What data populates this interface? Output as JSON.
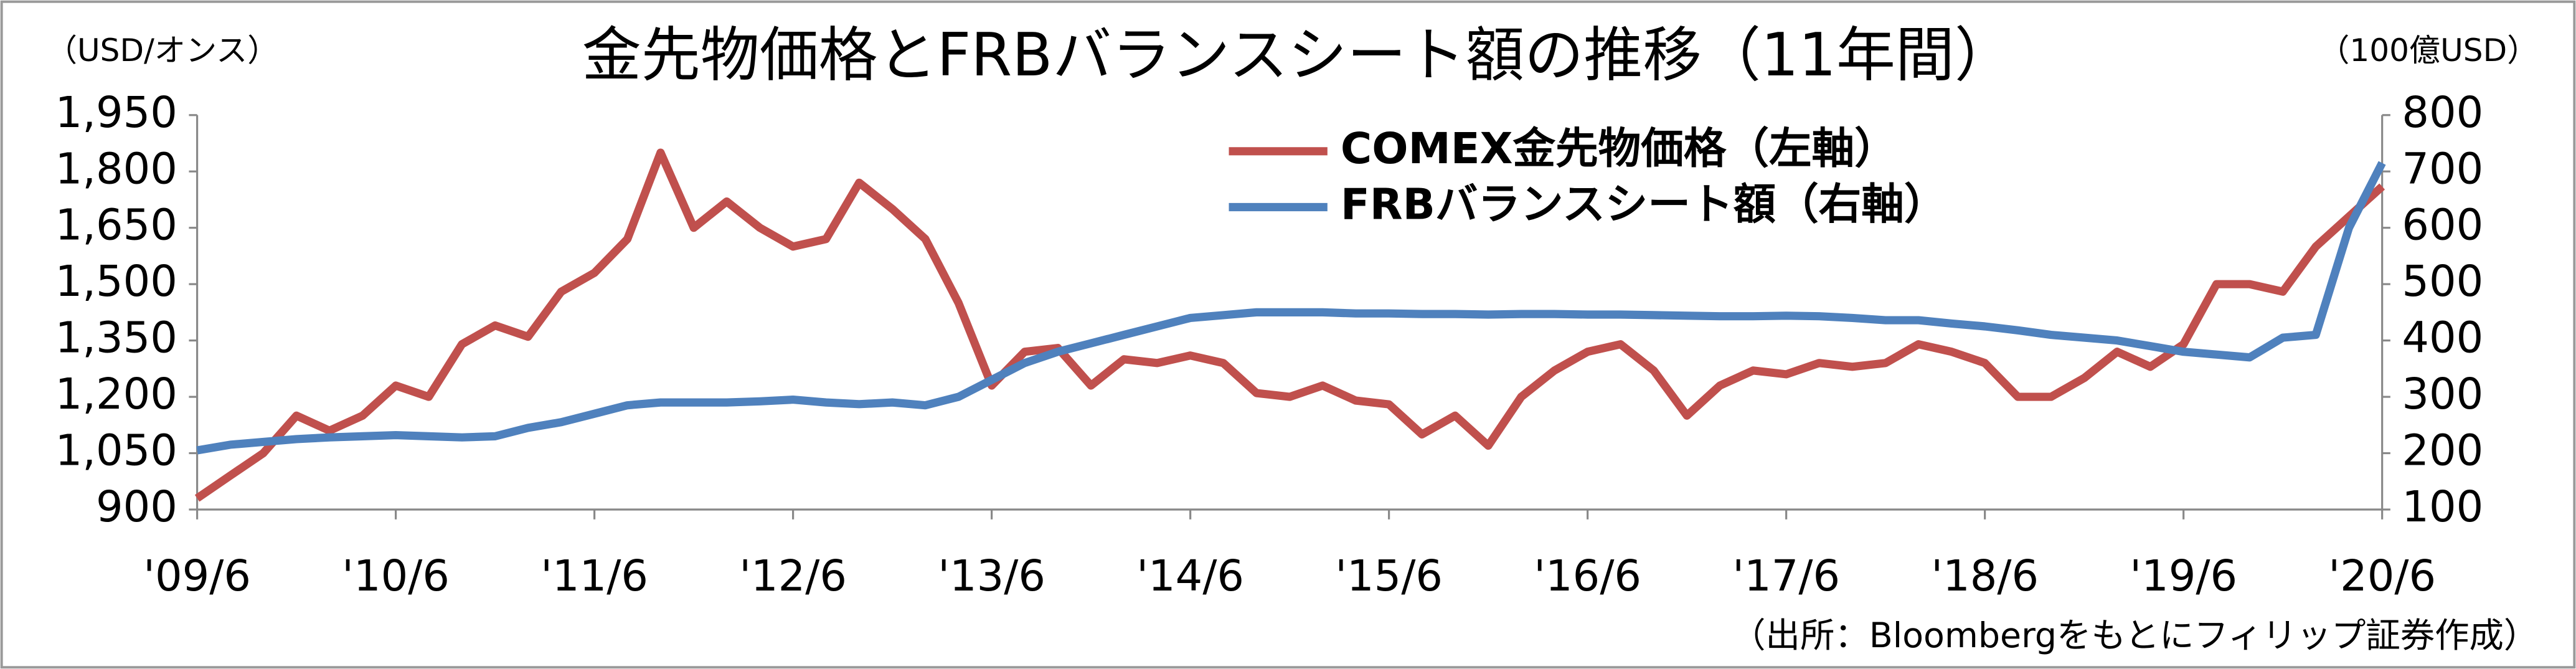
{
  "chart_data": {
    "type": "line",
    "title": "金先物価格とFRBバランスシート額の推移（11年間）",
    "y_label": "（USD/オンス）",
    "y2_label": "（100億USD）",
    "source": "（出所：Bloombergをもとにフィリップ証券作成）",
    "x": [
      2009.417,
      2009.583,
      2009.75,
      2009.917,
      2010.083,
      2010.25,
      2010.417,
      2010.583,
      2010.75,
      2010.917,
      2011.083,
      2011.25,
      2011.417,
      2011.583,
      2011.75,
      2011.917,
      2012.083,
      2012.25,
      2012.417,
      2012.583,
      2012.75,
      2012.917,
      2013.083,
      2013.25,
      2013.417,
      2013.583,
      2013.75,
      2013.917,
      2014.083,
      2014.25,
      2014.417,
      2014.583,
      2014.75,
      2014.917,
      2015.083,
      2015.25,
      2015.417,
      2015.583,
      2015.75,
      2015.917,
      2016.083,
      2016.25,
      2016.417,
      2016.583,
      2016.75,
      2016.917,
      2017.083,
      2017.25,
      2017.417,
      2017.583,
      2017.75,
      2017.917,
      2018.083,
      2018.25,
      2018.417,
      2018.583,
      2018.75,
      2018.917,
      2019.083,
      2019.25,
      2019.417,
      2019.583,
      2019.75,
      2019.917,
      2020.083,
      2020.25,
      2020.417
    ],
    "series": [
      {
        "name": "COMEX金先物価格（左軸）",
        "color": "#c0504d",
        "axis": "y",
        "values": [
          930,
          990,
          1050,
          1150,
          1110,
          1150,
          1230,
          1200,
          1340,
          1390,
          1360,
          1480,
          1530,
          1620,
          1850,
          1650,
          1720,
          1650,
          1600,
          1620,
          1770,
          1700,
          1620,
          1450,
          1230,
          1320,
          1330,
          1230,
          1300,
          1290,
          1310,
          1290,
          1210,
          1200,
          1230,
          1190,
          1180,
          1100,
          1150,
          1070,
          1200,
          1270,
          1320,
          1340,
          1270,
          1150,
          1230,
          1270,
          1260,
          1290,
          1280,
          1290,
          1340,
          1320,
          1290,
          1200,
          1200,
          1250,
          1320,
          1280,
          1340,
          1500,
          1500,
          1480,
          1600,
          1680,
          1760
        ]
      },
      {
        "name": "FRBバランスシート額（右軸）",
        "color": "#4f81bd",
        "axis": "y2",
        "values": [
          205,
          215,
          220,
          225,
          228,
          230,
          232,
          230,
          228,
          230,
          245,
          255,
          270,
          285,
          290,
          290,
          290,
          292,
          295,
          290,
          287,
          290,
          285,
          300,
          330,
          360,
          380,
          395,
          410,
          425,
          440,
          445,
          450,
          450,
          450,
          448,
          448,
          447,
          447,
          446,
          447,
          447,
          446,
          446,
          445,
          444,
          443,
          443,
          444,
          443,
          440,
          436,
          436,
          430,
          425,
          418,
          410,
          405,
          400,
          390,
          380,
          375,
          370,
          405,
          410,
          600,
          715
        ]
      }
    ],
    "xlim": [
      2009.417,
      2020.417
    ],
    "xticks": [
      {
        "value": 2009.417,
        "label": "'09/6"
      },
      {
        "value": 2010.417,
        "label": "'10/6"
      },
      {
        "value": 2011.417,
        "label": "'11/6"
      },
      {
        "value": 2012.417,
        "label": "'12/6"
      },
      {
        "value": 2013.417,
        "label": "'13/6"
      },
      {
        "value": 2014.417,
        "label": "'14/6"
      },
      {
        "value": 2015.417,
        "label": "'15/6"
      },
      {
        "value": 2016.417,
        "label": "'16/6"
      },
      {
        "value": 2017.417,
        "label": "'17/6"
      },
      {
        "value": 2018.417,
        "label": "'18/6"
      },
      {
        "value": 2019.417,
        "label": "'19/6"
      },
      {
        "value": 2020.417,
        "label": "'20/6"
      }
    ],
    "ylim": [
      900,
      1950
    ],
    "yticks": [
      900,
      {
        "value": 1050,
        "label": "1,050"
      },
      {
        "value": 1200,
        "label": "1,200"
      },
      {
        "value": 1350,
        "label": "1,350"
      },
      {
        "value": 1500,
        "label": "1,500"
      },
      {
        "value": 1650,
        "label": "1,650"
      },
      {
        "value": 1800,
        "label": "1,800"
      },
      {
        "value": 1950,
        "label": "1,950"
      }
    ],
    "y2lim": [
      100,
      800
    ],
    "y2ticks": [
      100,
      200,
      300,
      400,
      500,
      600,
      700,
      800
    ],
    "grid": false
  }
}
